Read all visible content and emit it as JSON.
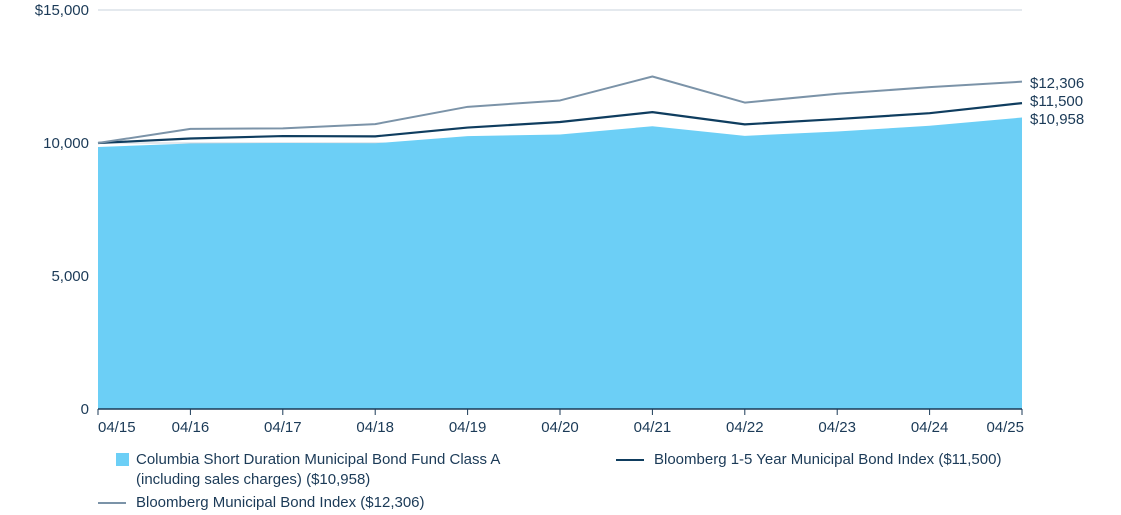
{
  "chart_data": {
    "type": "area",
    "title": "",
    "xlabel": "",
    "ylabel": "",
    "ylim": [
      0,
      15000
    ],
    "y_ticks": [
      0,
      5000,
      10000,
      15000
    ],
    "y_tick_labels": [
      "0",
      "5,000",
      "10,000",
      "$15,000"
    ],
    "categories": [
      "04/15",
      "04/16",
      "04/17",
      "04/18",
      "04/19",
      "04/20",
      "04/21",
      "04/22",
      "04/23",
      "04/24",
      "04/25"
    ],
    "grid": "horizontal",
    "legend_position": "bottom",
    "series": [
      {
        "name": "Columbia Short Duration Municipal Bond Fund Class A (including sales charges) ($10,958)",
        "legend_line1": "Columbia Short Duration Municipal Bond Fund Class A",
        "legend_line2": "(including sales charges) ($10,958)",
        "type": "area",
        "color": "#6ccff6",
        "values": [
          9850,
          9980,
          10000,
          9990,
          10260,
          10320,
          10630,
          10270,
          10430,
          10650,
          10958
        ],
        "end_label": "$10,958"
      },
      {
        "name": "Bloomberg 1-5 Year Municipal Bond Index ($11,500)",
        "type": "line",
        "color": "#0f3d5f",
        "values": [
          10000,
          10170,
          10260,
          10250,
          10580,
          10790,
          11160,
          10700,
          10900,
          11120,
          11500
        ],
        "end_label": "$11,500"
      },
      {
        "name": "Bloomberg Municipal Bond Index ($12,306)",
        "type": "line",
        "color": "#7b93a8",
        "values": [
          10000,
          10530,
          10550,
          10710,
          11360,
          11600,
          12500,
          11520,
          11850,
          12100,
          12306
        ],
        "end_label": "$12,306"
      }
    ]
  }
}
